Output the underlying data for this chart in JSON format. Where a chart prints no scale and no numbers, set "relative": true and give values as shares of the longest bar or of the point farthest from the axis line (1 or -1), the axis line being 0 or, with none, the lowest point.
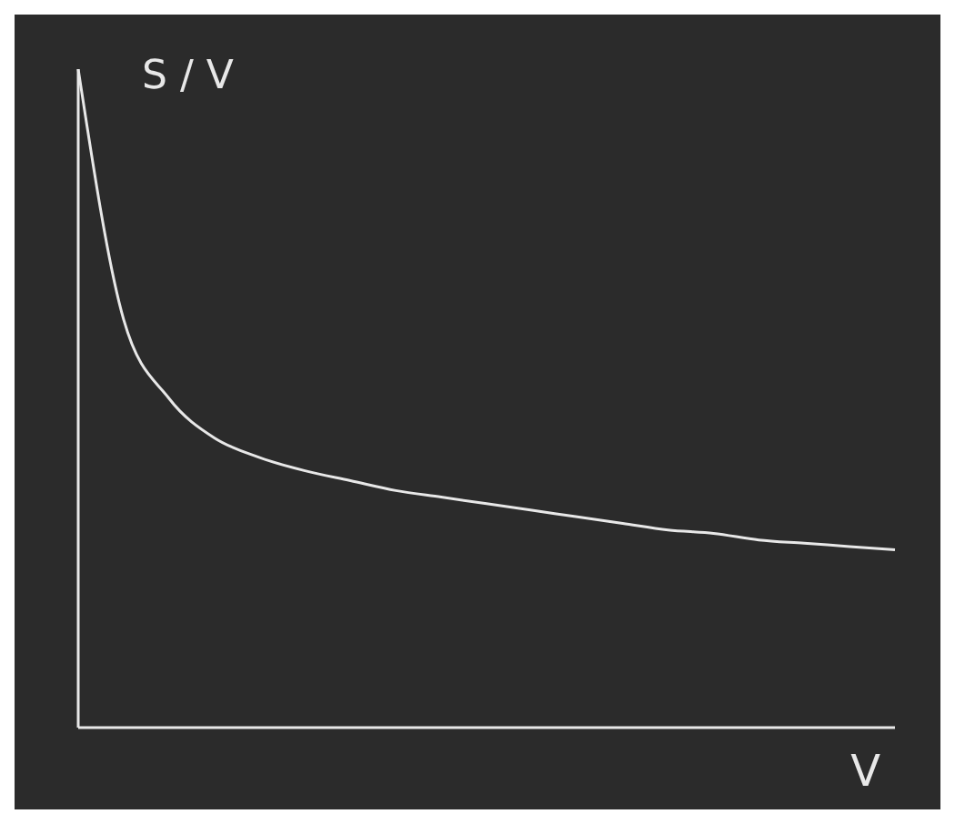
{
  "chart_data": {
    "type": "line",
    "relative": true,
    "xlabel": "V",
    "ylabel": "S / V",
    "categories": [
      null,
      null,
      null,
      null,
      null,
      null,
      null,
      null,
      null,
      null,
      null,
      null,
      null,
      null,
      null,
      null,
      null,
      null,
      null
    ],
    "series": [
      {
        "color": "#e8e8e8",
        "values": [
          1.0,
          0.62,
          0.5,
          0.44,
          0.41,
          0.39,
          0.375,
          0.36,
          0.35,
          0.34,
          0.33,
          0.32,
          0.31,
          0.3,
          0.295,
          0.285,
          0.28,
          0.275,
          0.27
        ]
      }
    ],
    "marker": "none"
  }
}
